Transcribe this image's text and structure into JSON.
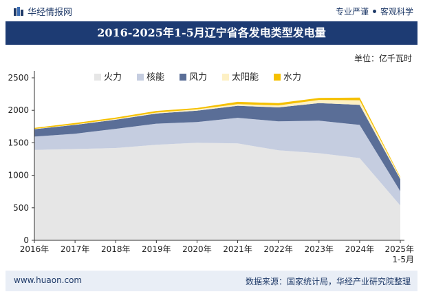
{
  "header": {
    "brand": "华经情报网",
    "tagline_left": "专业严谨",
    "tagline_right": "客观科学"
  },
  "footer": {
    "site": "www.huaon.com",
    "source": "数据来源：国家统计局，华经产业研究院整理"
  },
  "chart_data": {
    "type": "area",
    "stacked": true,
    "title": "2016-2025年1-5月辽宁省各发电类型发电量",
    "unit_label": "单位：亿千瓦时",
    "x": [
      "2016年",
      "2017年",
      "2018年",
      "2019年",
      "2020年",
      "2021年",
      "2022年",
      "2023年",
      "2024年",
      "2025年 1-5月"
    ],
    "ylim": [
      0,
      2500
    ],
    "yticks": [
      0,
      500,
      1000,
      1500,
      2000,
      2500
    ],
    "legend_position": "top",
    "grid": false,
    "series": [
      {
        "name": "火力",
        "color": "#e6e6e6",
        "values": [
          1390,
          1405,
          1420,
          1470,
          1500,
          1490,
          1385,
          1340,
          1265,
          535
        ]
      },
      {
        "name": "核能",
        "color": "#c5cde0",
        "values": [
          205,
          235,
          295,
          325,
          320,
          395,
          445,
          500,
          510,
          220
        ]
      },
      {
        "name": "风力",
        "color": "#5a6e97",
        "values": [
          115,
          135,
          140,
          155,
          175,
          185,
          215,
          270,
          310,
          185
        ]
      },
      {
        "name": "太阳能",
        "color": "#fdf0c4",
        "values": [
          5,
          8,
          12,
          15,
          20,
          25,
          30,
          50,
          70,
          20
        ]
      },
      {
        "name": "水力",
        "color": "#f5c000",
        "values": [
          15,
          22,
          22,
          25,
          20,
          35,
          35,
          30,
          40,
          13
        ]
      }
    ]
  }
}
